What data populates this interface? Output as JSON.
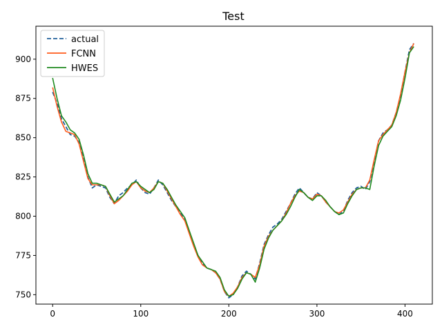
{
  "chart_data": {
    "type": "line",
    "title": "Test",
    "xlabel": "",
    "ylabel": "",
    "xlim": [
      -19,
      431
    ],
    "ylim": [
      744,
      921
    ],
    "xticks": [
      0,
      100,
      200,
      300,
      400
    ],
    "yticks": [
      750,
      775,
      800,
      825,
      850,
      875,
      900
    ],
    "grid": false,
    "legend_position": "upper-left",
    "colors": {
      "actual": "#1f5f99",
      "FCNN": "#ff5a1a",
      "HWES": "#1f8a1f"
    },
    "series": [
      {
        "name": "actual",
        "style": "dashed",
        "x": [
          0,
          5,
          10,
          15,
          20,
          25,
          30,
          35,
          40,
          45,
          50,
          55,
          60,
          65,
          70,
          75,
          80,
          85,
          90,
          95,
          100,
          105,
          110,
          115,
          120,
          125,
          130,
          135,
          140,
          145,
          150,
          155,
          160,
          165,
          170,
          175,
          180,
          185,
          190,
          195,
          200,
          205,
          210,
          215,
          220,
          225,
          230,
          235,
          240,
          245,
          250,
          255,
          260,
          265,
          270,
          275,
          280,
          285,
          290,
          295,
          300,
          305,
          310,
          315,
          320,
          325,
          330,
          335,
          340,
          345,
          350,
          355,
          360,
          365,
          370,
          375,
          380,
          385,
          390,
          395,
          400,
          405,
          410
        ],
        "values": [
          879,
          872,
          862,
          857,
          852,
          851,
          847,
          838,
          825,
          818,
          820,
          819,
          818,
          812,
          808,
          813,
          815,
          818,
          820,
          823,
          818,
          815,
          814,
          818,
          823,
          820,
          815,
          810,
          806,
          802,
          798,
          790,
          782,
          775,
          770,
          767,
          766,
          764,
          760,
          752,
          748,
          750,
          755,
          762,
          765,
          763,
          760,
          770,
          782,
          788,
          793,
          795,
          798,
          803,
          808,
          814,
          818,
          815,
          812,
          811,
          815,
          813,
          809,
          806,
          803,
          801,
          803,
          810,
          815,
          818,
          819,
          817,
          822,
          835,
          848,
          853,
          855,
          858,
          866,
          877,
          892,
          906,
          910
        ]
      },
      {
        "name": "FCNN",
        "style": "solid",
        "x": [
          0,
          5,
          10,
          15,
          20,
          25,
          30,
          35,
          40,
          45,
          50,
          55,
          60,
          65,
          70,
          75,
          80,
          85,
          90,
          95,
          100,
          105,
          110,
          115,
          120,
          125,
          130,
          135,
          140,
          145,
          150,
          155,
          160,
          165,
          170,
          175,
          180,
          185,
          190,
          195,
          200,
          205,
          210,
          215,
          220,
          225,
          230,
          235,
          240,
          245,
          250,
          255,
          260,
          265,
          270,
          275,
          280,
          285,
          290,
          295,
          300,
          305,
          310,
          315,
          320,
          325,
          330,
          335,
          340,
          345,
          350,
          355,
          360,
          365,
          370,
          375,
          380,
          385,
          390,
          395,
          400,
          405,
          410
        ],
        "values": [
          882,
          870,
          860,
          854,
          853,
          852,
          846,
          835,
          824,
          820,
          820,
          820,
          819,
          813,
          808,
          810,
          813,
          816,
          820,
          822,
          818,
          816,
          815,
          818,
          822,
          821,
          816,
          811,
          806,
          801,
          797,
          789,
          781,
          774,
          769,
          767,
          766,
          764,
          760,
          752,
          749,
          751,
          755,
          761,
          764,
          763,
          761,
          769,
          781,
          787,
          791,
          794,
          797,
          802,
          808,
          813,
          816,
          815,
          812,
          811,
          814,
          813,
          809,
          806,
          803,
          802,
          804,
          809,
          814,
          817,
          818,
          818,
          823,
          836,
          848,
          852,
          855,
          858,
          866,
          878,
          892,
          904,
          910
        ]
      },
      {
        "name": "HWES",
        "style": "solid",
        "x": [
          0,
          5,
          10,
          15,
          20,
          25,
          30,
          35,
          40,
          45,
          50,
          55,
          60,
          65,
          70,
          75,
          80,
          85,
          90,
          95,
          100,
          105,
          110,
          115,
          120,
          125,
          130,
          135,
          140,
          145,
          150,
          155,
          160,
          165,
          170,
          175,
          180,
          185,
          190,
          195,
          200,
          205,
          210,
          215,
          220,
          225,
          230,
          235,
          240,
          245,
          250,
          255,
          260,
          265,
          270,
          275,
          280,
          285,
          290,
          295,
          300,
          305,
          310,
          315,
          320,
          325,
          330,
          335,
          340,
          345,
          350,
          355,
          360,
          365,
          370,
          375,
          380,
          385,
          390,
          395,
          400,
          405,
          410
        ],
        "values": [
          888,
          875,
          864,
          860,
          855,
          853,
          849,
          839,
          827,
          821,
          821,
          820,
          819,
          814,
          809,
          811,
          813,
          817,
          821,
          822,
          819,
          817,
          815,
          817,
          822,
          821,
          817,
          812,
          807,
          803,
          799,
          791,
          783,
          775,
          771,
          767,
          766,
          765,
          761,
          753,
          749,
          750,
          754,
          760,
          764,
          763,
          758,
          767,
          779,
          786,
          791,
          794,
          797,
          801,
          806,
          812,
          817,
          815,
          812,
          810,
          813,
          813,
          810,
          806,
          803,
          801,
          802,
          808,
          813,
          817,
          818,
          818,
          817,
          832,
          845,
          851,
          854,
          857,
          864,
          874,
          888,
          904,
          908
        ]
      }
    ]
  }
}
